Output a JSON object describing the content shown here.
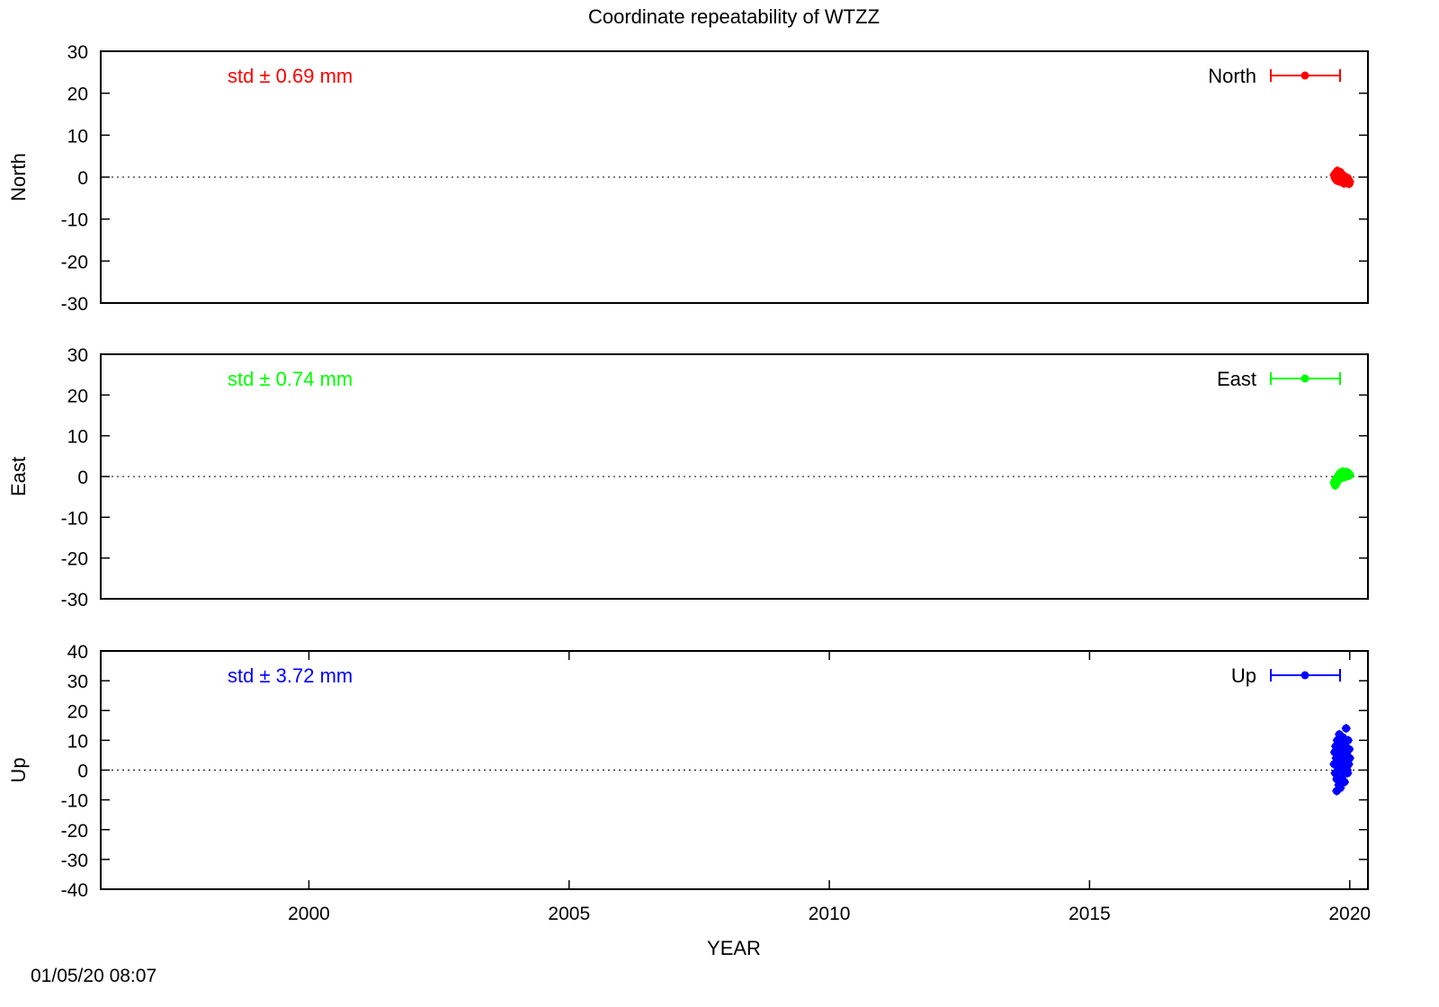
{
  "chart_data": {
    "type": "scatter",
    "title": "Coordinate repeatability of WTZZ",
    "xlabel": "YEAR",
    "xlim": [
      1996,
      2020.35
    ],
    "xticks": [
      "2000",
      "2005",
      "2010",
      "2015",
      "2020"
    ],
    "timestamp": "01/05/20 08:07",
    "panels": [
      {
        "id": "north",
        "ylabel": "North",
        "ylim": [
          -30,
          30
        ],
        "yticks": [
          "-30",
          "-20",
          "-10",
          "0",
          "10",
          "20",
          "30"
        ],
        "std_label": "std ± 0.69 mm",
        "legend": "North",
        "color": "#ff0000",
        "x": [
          2019.7,
          2019.72,
          2019.73,
          2019.74,
          2019.75,
          2019.76,
          2019.77,
          2019.78,
          2019.79,
          2019.8,
          2019.81,
          2019.82,
          2019.83,
          2019.84,
          2019.85,
          2019.86,
          2019.87,
          2019.88,
          2019.89,
          2019.9,
          2019.91,
          2019.92,
          2019.93,
          2019.94,
          2019.95,
          2019.96,
          2019.97,
          2019.98,
          2019.99,
          2020.0
        ],
        "y": [
          0.5,
          -0.3,
          1.0,
          0.2,
          -0.8,
          1.5,
          0.3,
          -0.4,
          0.8,
          -1.0,
          0.0,
          1.2,
          -0.5,
          0.4,
          -1.2,
          0.6,
          -0.7,
          0.1,
          -1.5,
          0.2,
          -0.9,
          -0.3,
          -1.4,
          -0.6,
          -1.0,
          -0.2,
          -1.3,
          -0.8,
          -1.6,
          -1.1
        ]
      },
      {
        "id": "east",
        "ylabel": "East",
        "ylim": [
          -30,
          30
        ],
        "yticks": [
          "-30",
          "-20",
          "-10",
          "0",
          "10",
          "20",
          "30"
        ],
        "std_label": "std ± 0.74 mm",
        "legend": "East",
        "color": "#00ff00",
        "x": [
          2019.7,
          2019.72,
          2019.73,
          2019.74,
          2019.75,
          2019.76,
          2019.77,
          2019.78,
          2019.79,
          2019.8,
          2019.81,
          2019.82,
          2019.83,
          2019.84,
          2019.85,
          2019.86,
          2019.87,
          2019.88,
          2019.89,
          2019.9,
          2019.91,
          2019.92,
          2019.93,
          2019.94,
          2019.95,
          2019.96,
          2019.97,
          2019.98,
          2019.99,
          2020.0
        ],
        "y": [
          -1.5,
          -2.2,
          -0.8,
          -1.8,
          -0.5,
          -1.2,
          0.0,
          -0.9,
          0.4,
          -0.6,
          0.8,
          -0.2,
          1.0,
          0.2,
          0.6,
          -0.3,
          1.2,
          0.5,
          0.1,
          0.9,
          -0.1,
          0.7,
          1.1,
          0.3,
          0.6,
          1.0,
          0.4,
          0.8,
          0.2,
          0.5
        ]
      },
      {
        "id": "up",
        "ylabel": "Up",
        "ylim": [
          -40,
          40
        ],
        "yticks": [
          "-40",
          "-30",
          "-20",
          "-10",
          "0",
          "10",
          "20",
          "30",
          "40"
        ],
        "std_label": "std ± 3.72 mm",
        "legend": "Up",
        "color": "#0000ff",
        "x": [
          2019.7,
          2019.71,
          2019.72,
          2019.73,
          2019.74,
          2019.75,
          2019.76,
          2019.77,
          2019.78,
          2019.79,
          2019.8,
          2019.81,
          2019.82,
          2019.83,
          2019.84,
          2019.85,
          2019.86,
          2019.87,
          2019.88,
          2019.89,
          2019.9,
          2019.91,
          2019.92,
          2019.93,
          2019.94,
          2019.95,
          2019.96,
          2019.97,
          2019.98,
          2019.99,
          2020.0,
          2019.75,
          2019.8,
          2019.85,
          2019.9,
          2019.95
        ],
        "y": [
          2,
          6,
          -1,
          8,
          4,
          -3,
          10,
          1,
          5,
          -5,
          7,
          3,
          -6,
          9,
          0,
          4,
          -2,
          11,
          6,
          2,
          -4,
          8,
          3,
          14,
          1,
          5,
          -1,
          10,
          2,
          7,
          4,
          -7,
          12,
          -3,
          9,
          0
        ]
      }
    ]
  }
}
